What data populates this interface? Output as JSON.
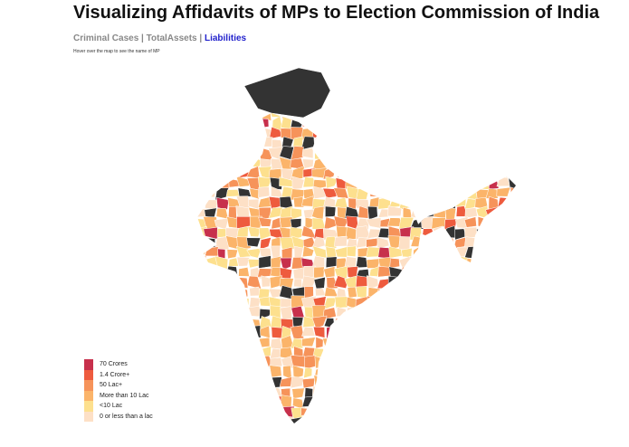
{
  "header": {
    "title": "Visualizing Affidavits of MPs to Election Commission of India",
    "nav": [
      {
        "label": "Criminal Cases",
        "active": false
      },
      {
        "label": "TotalAssets",
        "active": false
      },
      {
        "label": "Liabilities",
        "active": true
      }
    ],
    "separator": "|",
    "hint": "Hover over the map to see the name of MP"
  },
  "map": {
    "metric": "Liabilities",
    "no_data_color": "#333333",
    "border_color": "#ffffff"
  },
  "legend": [
    {
      "label": "70 Crores",
      "color": "#c7304c"
    },
    {
      "label": "1.4 Crore+",
      "color": "#ee5b3e"
    },
    {
      "label": "50 Lac+",
      "color": "#f6935a"
    },
    {
      "label": "More than 10 Lac",
      "color": "#fbb46a"
    },
    {
      "label": "<10 Lac",
      "color": "#fde08e"
    },
    {
      "label": "0 or less than a lac",
      "color": "#fde0c6"
    }
  ]
}
